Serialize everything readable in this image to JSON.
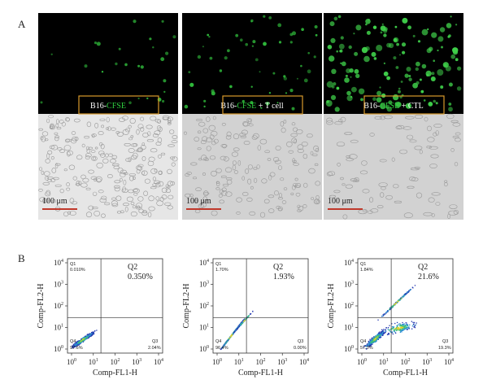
{
  "panel_a": {
    "label": "A",
    "images": [
      {
        "caption_prefix": "B16-",
        "caption_highlight": "CFSE",
        "caption_suffix": "",
        "scale_bar": "100 μm"
      },
      {
        "caption_prefix": "B16-",
        "caption_highlight": "CFSE",
        "caption_suffix": " + T cell",
        "scale_bar": "100 μm"
      },
      {
        "caption_prefix": "B16-",
        "caption_highlight": "CFSE",
        "caption_suffix": " + CTL",
        "scale_bar": "100 μm"
      }
    ]
  },
  "panel_b": {
    "label": "B",
    "tick_base": "10",
    "tick_exponents": [
      "0",
      "1",
      "2",
      "3",
      "4"
    ],
    "plots": [
      {
        "x_label": "Comp-FL1-H",
        "y_label": "Comp-FL2-H",
        "q1": "Q1",
        "q1_value": "0.010%",
        "q2": "Q2",
        "q2_value": "0.350%",
        "q3": "Q3",
        "q3_value": "2.04%",
        "q4": "Q4",
        "q4_value": "97.6%"
      },
      {
        "x_label": "Comp-FL1-H",
        "y_label": "Comp-FL2-H",
        "q1": "Q1",
        "q1_value": "1.70%",
        "q2": "Q2",
        "q2_value": "1.93%",
        "q3": "Q3",
        "q3_value": "0.00%",
        "q4": "Q4",
        "q4_value": "96.4%"
      },
      {
        "x_label": "Comp-FL1-H",
        "y_label": "Comp-FL2-H",
        "q1": "Q1",
        "q1_value": "1.84%",
        "q2": "Q2",
        "q2_value": "21.6%",
        "q3": "Q3",
        "q3_value": "19.3%",
        "q4": "Q4",
        "q4_value": "57.3%"
      }
    ]
  }
}
